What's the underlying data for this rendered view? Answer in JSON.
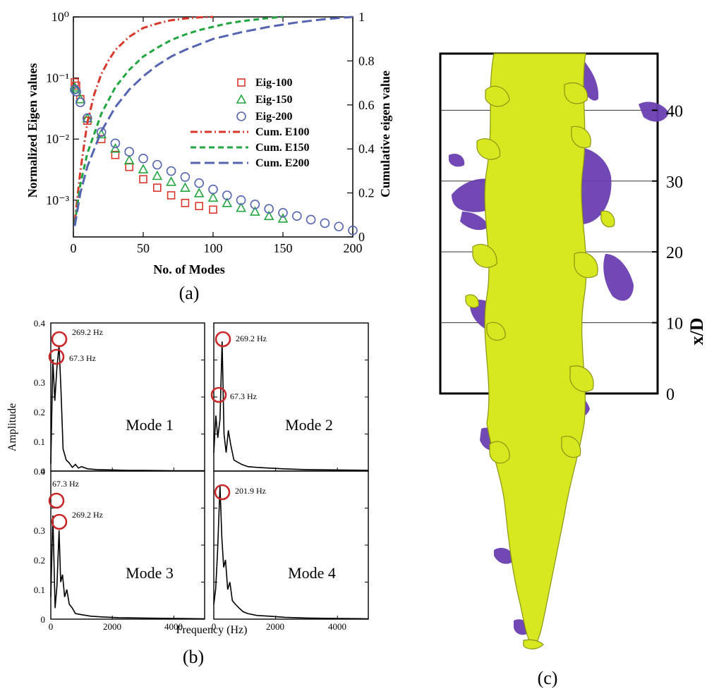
{
  "panel_a": {
    "label": "(a)",
    "xlabel": "No. of Modes",
    "ylabel_left": "Normalized Eigen values",
    "ylabel_right": "Cumulative eigen value",
    "x_ticks": [
      "0",
      "50",
      "100",
      "150",
      "200"
    ],
    "y_left_ticks": [
      "10⁻³",
      "10⁻²",
      "10⁻¹",
      "10⁰"
    ],
    "y_right_ticks": [
      "0",
      "0.2",
      "0.4",
      "0.6",
      "0.8",
      "1"
    ],
    "legend": [
      "Eig-100",
      "Eig-150",
      "Eig-200",
      "Cum. E100",
      "Cum. E150",
      "Cum. E200"
    ]
  },
  "panel_b": {
    "label": "(b)",
    "xlabel": "Frequency (Hz)",
    "ylabel": "Amplitude",
    "y_ticks": [
      "0",
      "0.1",
      "0.2",
      "0.3",
      "0.4"
    ],
    "x_ticks": [
      "0",
      "2000",
      "4000"
    ],
    "modes": [
      {
        "title": "Mode 1",
        "annotations": [
          "269.2 Hz",
          "67.3 Hz"
        ]
      },
      {
        "title": "Mode 2",
        "annotations": [
          "269.2 Hz",
          "67.3 Hz"
        ]
      },
      {
        "title": "Mode 3",
        "annotations": [
          "67.3 Hz",
          "269.2 Hz"
        ]
      },
      {
        "title": "Mode 4",
        "annotations": [
          "201.9 Hz"
        ]
      }
    ]
  },
  "panel_c": {
    "label": "(c)",
    "ylabel": "x/D",
    "y_ticks": [
      "0",
      "10",
      "20",
      "30",
      "40"
    ]
  },
  "colors": {
    "eig100": "#d9372b",
    "eig150": "#21a53f",
    "eig200": "#5464b0",
    "isosurface_yellow": "#d8e820",
    "isosurface_purple": "#6a3fb0"
  },
  "chart_data": [
    {
      "type": "scatter",
      "panel": "a",
      "title": "",
      "xlabel": "No. of Modes",
      "ylabel": "Normalized Eigen values",
      "y2label": "Cumulative eigen value",
      "xlim": [
        0,
        200
      ],
      "ylim": [
        0.00025,
        1
      ],
      "ylog": true,
      "y2lim": [
        0,
        1
      ],
      "series": [
        {
          "name": "Eig-100",
          "marker": "square",
          "x": [
            1,
            2,
            5,
            10,
            20,
            30,
            40,
            50,
            60,
            70,
            80,
            90,
            100
          ],
          "y": [
            0.085,
            0.075,
            0.045,
            0.02,
            0.01,
            0.0055,
            0.0035,
            0.0022,
            0.0016,
            0.0012,
            0.0009,
            0.0008,
            0.0007
          ]
        },
        {
          "name": "Eig-150",
          "marker": "triangle",
          "x": [
            1,
            2,
            5,
            10,
            20,
            30,
            40,
            50,
            60,
            70,
            80,
            90,
            100,
            110,
            120,
            130,
            140,
            150
          ],
          "y": [
            0.07,
            0.065,
            0.045,
            0.022,
            0.012,
            0.007,
            0.0045,
            0.0032,
            0.0025,
            0.002,
            0.0016,
            0.0013,
            0.0011,
            0.0009,
            0.00075,
            0.00065,
            0.00055,
            0.0005
          ]
        },
        {
          "name": "Eig-200",
          "marker": "circle",
          "x": [
            1,
            2,
            5,
            10,
            20,
            30,
            40,
            50,
            60,
            70,
            80,
            90,
            100,
            110,
            120,
            130,
            140,
            150,
            160,
            170,
            180,
            190,
            200
          ],
          "y": [
            0.065,
            0.06,
            0.04,
            0.022,
            0.013,
            0.0085,
            0.0062,
            0.0048,
            0.0038,
            0.003,
            0.0024,
            0.0019,
            0.0015,
            0.0012,
            0.001,
            0.00085,
            0.00072,
            0.00062,
            0.00055,
            0.00048,
            0.00042,
            0.00037,
            0.00032
          ]
        },
        {
          "name": "Cum. E100",
          "axis": "right",
          "line": "dash-dot",
          "x": [
            1,
            5,
            10,
            15,
            20,
            25,
            30,
            40,
            50,
            60,
            70,
            80,
            90,
            100
          ],
          "y": [
            0.07,
            0.3,
            0.52,
            0.65,
            0.74,
            0.8,
            0.85,
            0.91,
            0.95,
            0.97,
            0.985,
            0.993,
            0.998,
            1.0
          ]
        },
        {
          "name": "Cum. E150",
          "axis": "right",
          "line": "dash",
          "x": [
            1,
            5,
            10,
            20,
            30,
            40,
            50,
            60,
            70,
            80,
            90,
            100,
            110,
            120,
            130,
            140,
            150
          ],
          "y": [
            0.06,
            0.24,
            0.38,
            0.56,
            0.68,
            0.76,
            0.82,
            0.86,
            0.895,
            0.92,
            0.94,
            0.955,
            0.97,
            0.98,
            0.988,
            0.995,
            1.0
          ]
        },
        {
          "name": "Cum. E200",
          "axis": "right",
          "line": "longdash",
          "x": [
            1,
            5,
            10,
            20,
            30,
            40,
            50,
            60,
            70,
            80,
            90,
            100,
            120,
            140,
            160,
            180,
            200
          ],
          "y": [
            0.05,
            0.2,
            0.32,
            0.48,
            0.59,
            0.67,
            0.73,
            0.78,
            0.82,
            0.85,
            0.875,
            0.9,
            0.93,
            0.955,
            0.975,
            0.99,
            1.0
          ]
        }
      ]
    },
    {
      "type": "line",
      "panel": "b",
      "title": "Mode 1",
      "xlabel": "Frequency (Hz)",
      "ylabel": "Amplitude",
      "xlim": [
        0,
        5000
      ],
      "ylim": [
        0,
        0.4
      ],
      "x": [
        0,
        67,
        130,
        200,
        269,
        330,
        400,
        500,
        600,
        700,
        800,
        900,
        1000,
        1200,
        1500,
        2000,
        2500,
        3000,
        4000,
        5000
      ],
      "y": [
        0.02,
        0.3,
        0.19,
        0.28,
        0.34,
        0.22,
        0.06,
        0.03,
        0.022,
        0.01,
        0.018,
        0.008,
        0.012,
        0.006,
        0.004,
        0.003,
        0.002,
        0.002,
        0.001,
        0.001
      ]
    },
    {
      "type": "line",
      "panel": "b",
      "title": "Mode 2",
      "xlabel": "Frequency (Hz)",
      "ylabel": "Amplitude",
      "xlim": [
        0,
        5000
      ],
      "ylim": [
        0,
        0.4
      ],
      "x": [
        0,
        67,
        130,
        200,
        269,
        330,
        400,
        470,
        550,
        650,
        750,
        900,
        1100,
        1400,
        1800,
        2300,
        3000,
        4000,
        5000
      ],
      "y": [
        0.05,
        0.15,
        0.09,
        0.14,
        0.35,
        0.1,
        0.05,
        0.11,
        0.07,
        0.03,
        0.025,
        0.018,
        0.012,
        0.01,
        0.008,
        0.006,
        0.004,
        0.003,
        0.002
      ]
    },
    {
      "type": "line",
      "panel": "b",
      "title": "Mode 3",
      "xlabel": "Frequency (Hz)",
      "ylabel": "Amplitude",
      "xlim": [
        0,
        5000
      ],
      "ylim": [
        0,
        0.4
      ],
      "x": [
        0,
        67,
        140,
        200,
        269,
        320,
        380,
        450,
        520,
        600,
        700,
        800,
        1000,
        1300,
        1700,
        2200,
        3000,
        4000,
        5000
      ],
      "y": [
        0.06,
        0.28,
        0.03,
        0.09,
        0.24,
        0.1,
        0.12,
        0.06,
        0.08,
        0.04,
        0.03,
        0.015,
        0.012,
        0.008,
        0.006,
        0.004,
        0.003,
        0.002,
        0.001
      ]
    },
    {
      "type": "line",
      "panel": "b",
      "title": "Mode 4",
      "xlabel": "Frequency (Hz)",
      "ylabel": "Amplitude",
      "xlim": [
        0,
        5000
      ],
      "ylim": [
        0,
        0.4
      ],
      "x": [
        0,
        60,
        120,
        202,
        260,
        320,
        380,
        450,
        520,
        600,
        700,
        820,
        950,
        1100,
        1400,
        1800,
        2300,
        3000,
        4000,
        5000
      ],
      "y": [
        0.04,
        0.08,
        0.18,
        0.36,
        0.22,
        0.14,
        0.16,
        0.08,
        0.1,
        0.05,
        0.04,
        0.03,
        0.02,
        0.015,
        0.01,
        0.008,
        0.005,
        0.003,
        0.002,
        0.001
      ]
    }
  ]
}
